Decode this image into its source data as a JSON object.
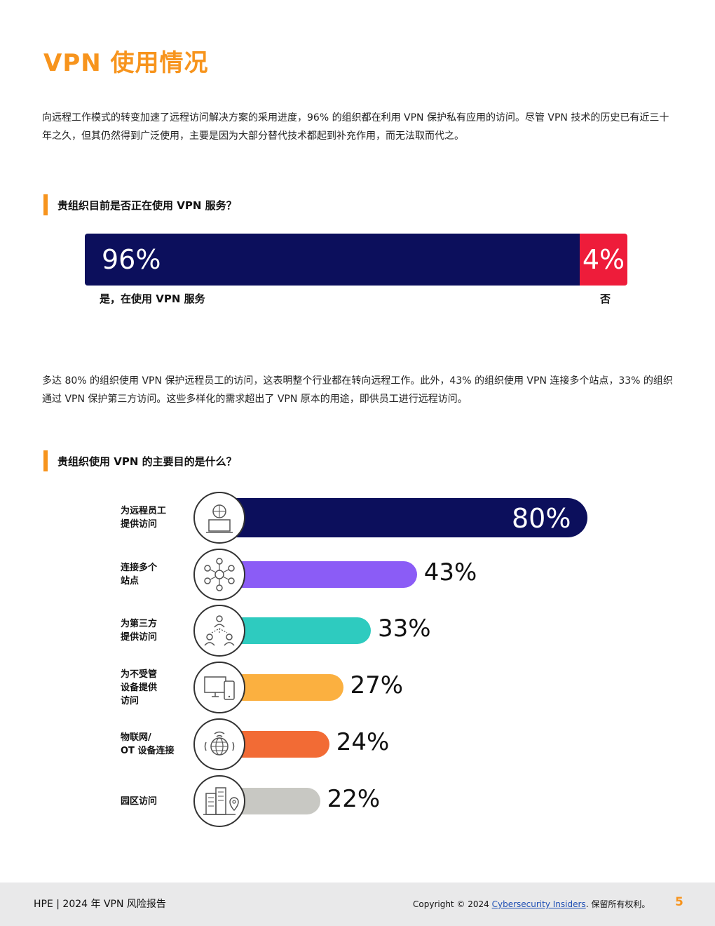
{
  "title": "VPN 使用情况",
  "intro_paragraph": "向远程工作模式的转变加速了远程访问解决方案的采用进度，96% 的组织都在利用 VPN 保护私有应用的访问。尽管 VPN 技术的历史已有近三十年之久，但其仍然得到广泛使用，主要是因为大部分替代技术都起到补充作用，而无法取而代之。",
  "question1": "贵组织目前是否正在使用 VPN 服务？",
  "chart1": {
    "type": "bar",
    "segments": [
      {
        "label": "是，在使用 VPN 服务",
        "value": 96,
        "display": "96%",
        "color": "#0c0f5c"
      },
      {
        "label": "否",
        "value": 4,
        "display": "4%",
        "color": "#ee1c3a"
      }
    ]
  },
  "second_paragraph": "多达 80% 的组织使用 VPN 保护远程员工的访问，这表明整个行业都在转向远程工作。此外，43% 的组织使用 VPN 连接多个站点，33% 的组织通过 VPN 保护第三方访问。这些多样化的需求超出了 VPN 原本的用途，即供员工进行远程访问。",
  "question2": "贵组织使用 VPN 的主要目的是什么？",
  "chart_data": {
    "type": "bar",
    "orientation": "horizontal",
    "categories": [
      "为远程员工提供访问",
      "连接多个站点",
      "为第三方提供访问",
      "为不受管设备提供访问",
      "物联网/OT 设备连接",
      "园区访问"
    ],
    "category_lines": [
      [
        "为远程员工",
        "提供访问"
      ],
      [
        "连接多个",
        "站点"
      ],
      [
        "为第三方",
        "提供访问"
      ],
      [
        "为不受管",
        "设备提供",
        "访问"
      ],
      [
        "物联网/",
        "OT 设备连接"
      ],
      [
        "园区访问"
      ]
    ],
    "values": [
      80,
      43,
      33,
      27,
      24,
      22
    ],
    "value_labels": [
      "80%",
      "43%",
      "33%",
      "27%",
      "24%",
      "22%"
    ],
    "colors": [
      "#0c0f5c",
      "#8b5cf6",
      "#2ecbbf",
      "#fbb040",
      "#f26b35",
      "#c8c8c3"
    ],
    "icons": [
      "remote-worker-icon",
      "network-nodes-icon",
      "third-party-users-icon",
      "devices-icon",
      "iot-globe-icon",
      "campus-buildings-icon"
    ]
  },
  "footer": {
    "brand": "HPE | 2024 年 VPN 风险报告",
    "copyright_prefix": "Copyright © 2024 ",
    "copyright_link": "Cybersecurity Insiders",
    "copyright_suffix": ". 保留所有权利。",
    "page_number": "5"
  }
}
